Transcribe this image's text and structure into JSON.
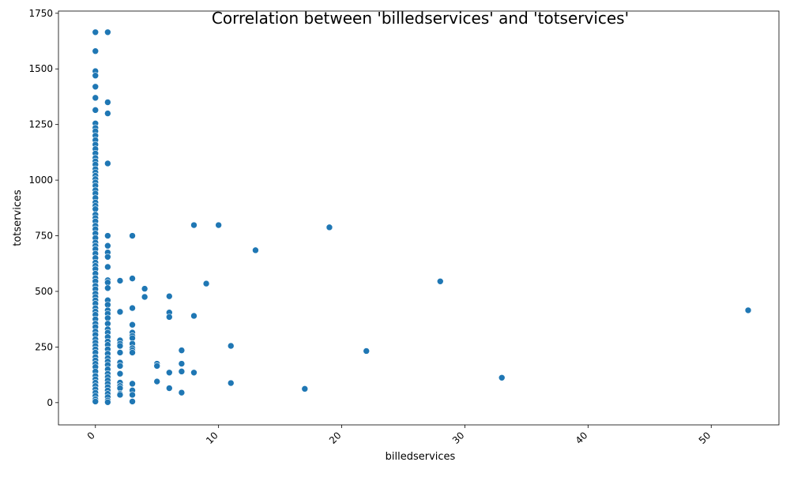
{
  "chart_data": {
    "type": "scatter",
    "title": "Correlation between 'billedservices' and 'totservices'",
    "xlabel": "billedservices",
    "ylabel": "totservices",
    "xlim": [
      -3,
      55.5
    ],
    "ylim": [
      -100,
      1760
    ],
    "xticks": [
      0,
      10,
      20,
      30,
      40,
      50
    ],
    "yticks": [
      0,
      250,
      500,
      750,
      1000,
      1250,
      1500,
      1750
    ],
    "grid": false,
    "legend": "none",
    "marker_color": "#1f77b4",
    "points": [
      [
        0,
        1665
      ],
      [
        0,
        1580
      ],
      [
        0,
        1490
      ],
      [
        0,
        1470
      ],
      [
        0,
        1420
      ],
      [
        0,
        1370
      ],
      [
        0,
        1315
      ],
      [
        0,
        1255
      ],
      [
        0,
        1235
      ],
      [
        0,
        1220
      ],
      [
        0,
        1200
      ],
      [
        0,
        1180
      ],
      [
        0,
        1160
      ],
      [
        0,
        1140
      ],
      [
        0,
        1120
      ],
      [
        0,
        1100
      ],
      [
        0,
        1085
      ],
      [
        0,
        1070
      ],
      [
        0,
        1050
      ],
      [
        0,
        1035
      ],
      [
        0,
        1020
      ],
      [
        0,
        1005
      ],
      [
        0,
        990
      ],
      [
        0,
        975
      ],
      [
        0,
        955
      ],
      [
        0,
        940
      ],
      [
        0,
        920
      ],
      [
        0,
        900
      ],
      [
        0,
        885
      ],
      [
        0,
        870
      ],
      [
        0,
        845
      ],
      [
        0,
        830
      ],
      [
        0,
        815
      ],
      [
        0,
        795
      ],
      [
        0,
        780
      ],
      [
        0,
        760
      ],
      [
        0,
        740
      ],
      [
        0,
        720
      ],
      [
        0,
        705
      ],
      [
        0,
        690
      ],
      [
        0,
        670
      ],
      [
        0,
        650
      ],
      [
        0,
        630
      ],
      [
        0,
        615
      ],
      [
        0,
        600
      ],
      [
        0,
        580
      ],
      [
        0,
        560
      ],
      [
        0,
        545
      ],
      [
        0,
        525
      ],
      [
        0,
        510
      ],
      [
        0,
        490
      ],
      [
        0,
        475
      ],
      [
        0,
        460
      ],
      [
        0,
        445
      ],
      [
        0,
        425
      ],
      [
        0,
        410
      ],
      [
        0,
        395
      ],
      [
        0,
        375
      ],
      [
        0,
        355
      ],
      [
        0,
        340
      ],
      [
        0,
        320
      ],
      [
        0,
        305
      ],
      [
        0,
        285
      ],
      [
        0,
        270
      ],
      [
        0,
        255
      ],
      [
        0,
        240
      ],
      [
        0,
        225
      ],
      [
        0,
        205
      ],
      [
        0,
        190
      ],
      [
        0,
        175
      ],
      [
        0,
        160
      ],
      [
        0,
        140
      ],
      [
        0,
        120
      ],
      [
        0,
        105
      ],
      [
        0,
        90
      ],
      [
        0,
        75
      ],
      [
        0,
        60
      ],
      [
        0,
        45
      ],
      [
        0,
        30
      ],
      [
        0,
        15
      ],
      [
        0,
        5
      ],
      [
        1,
        1665
      ],
      [
        1,
        1350
      ],
      [
        1,
        1300
      ],
      [
        1,
        1075
      ],
      [
        1,
        750
      ],
      [
        1,
        705
      ],
      [
        1,
        675
      ],
      [
        1,
        655
      ],
      [
        1,
        610
      ],
      [
        1,
        550
      ],
      [
        1,
        540
      ],
      [
        1,
        515
      ],
      [
        1,
        460
      ],
      [
        1,
        440
      ],
      [
        1,
        415
      ],
      [
        1,
        400
      ],
      [
        1,
        380
      ],
      [
        1,
        355
      ],
      [
        1,
        330
      ],
      [
        1,
        315
      ],
      [
        1,
        295
      ],
      [
        1,
        275
      ],
      [
        1,
        260
      ],
      [
        1,
        240
      ],
      [
        1,
        220
      ],
      [
        1,
        200
      ],
      [
        1,
        185
      ],
      [
        1,
        170
      ],
      [
        1,
        150
      ],
      [
        1,
        130
      ],
      [
        1,
        115
      ],
      [
        1,
        100
      ],
      [
        1,
        85
      ],
      [
        1,
        70
      ],
      [
        1,
        55
      ],
      [
        1,
        40
      ],
      [
        1,
        25
      ],
      [
        1,
        10
      ],
      [
        1,
        2
      ],
      [
        2,
        548
      ],
      [
        2,
        408
      ],
      [
        2,
        280
      ],
      [
        2,
        265
      ],
      [
        2,
        255
      ],
      [
        2,
        225
      ],
      [
        2,
        180
      ],
      [
        2,
        165
      ],
      [
        2,
        130
      ],
      [
        2,
        90
      ],
      [
        2,
        75
      ],
      [
        2,
        65
      ],
      [
        2,
        40
      ],
      [
        2,
        35
      ],
      [
        3,
        750
      ],
      [
        3,
        558
      ],
      [
        3,
        425
      ],
      [
        3,
        350
      ],
      [
        3,
        315
      ],
      [
        3,
        300
      ],
      [
        3,
        290
      ],
      [
        3,
        265
      ],
      [
        3,
        245
      ],
      [
        3,
        235
      ],
      [
        3,
        225
      ],
      [
        3,
        85
      ],
      [
        3,
        55
      ],
      [
        3,
        35
      ],
      [
        3,
        5
      ],
      [
        4,
        512
      ],
      [
        4,
        475
      ],
      [
        5,
        175
      ],
      [
        5,
        165
      ],
      [
        5,
        95
      ],
      [
        6,
        478
      ],
      [
        6,
        405
      ],
      [
        6,
        385
      ],
      [
        6,
        135
      ],
      [
        6,
        65
      ],
      [
        7,
        235
      ],
      [
        7,
        175
      ],
      [
        7,
        140
      ],
      [
        7,
        45
      ],
      [
        8,
        798
      ],
      [
        8,
        390
      ],
      [
        8,
        135
      ],
      [
        9,
        535
      ],
      [
        10,
        798
      ],
      [
        11,
        255
      ],
      [
        11,
        88
      ],
      [
        13,
        685
      ],
      [
        17,
        62
      ],
      [
        19,
        788
      ],
      [
        22,
        232
      ],
      [
        28,
        545
      ],
      [
        33,
        112
      ],
      [
        53,
        415
      ]
    ]
  }
}
